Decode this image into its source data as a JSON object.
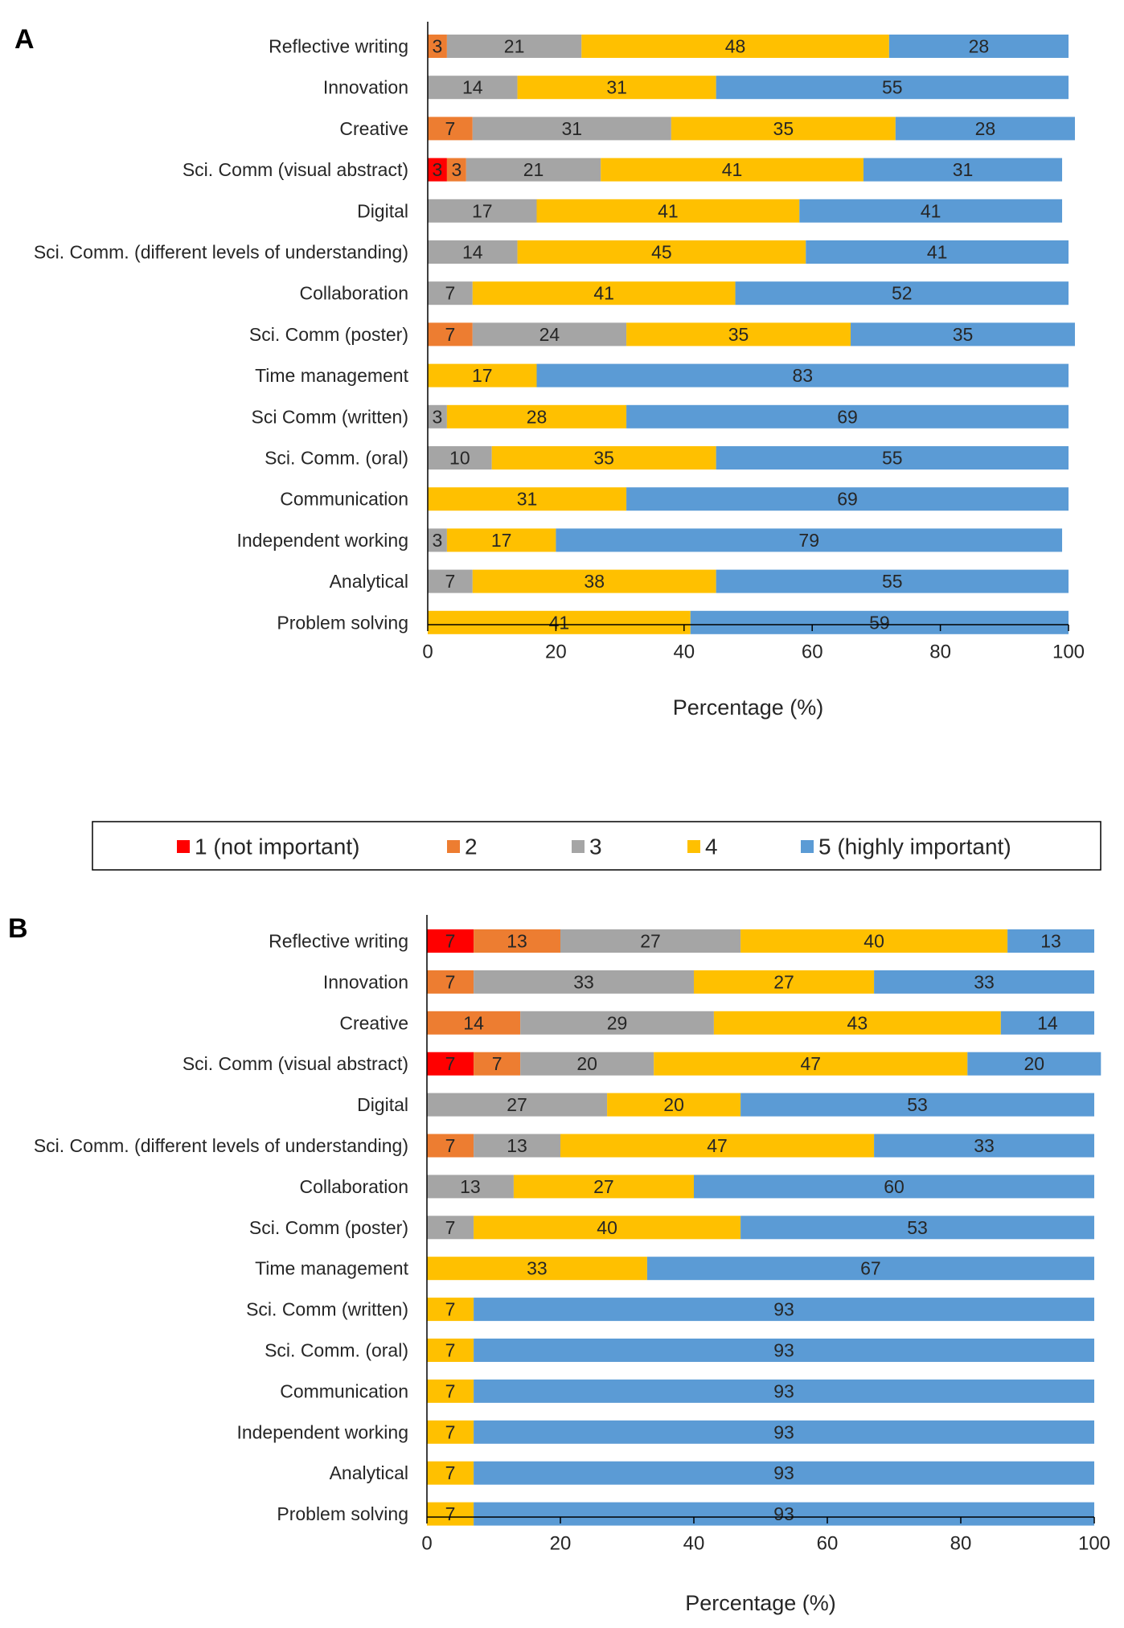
{
  "legend": {
    "items": [
      {
        "label": "1 (not important)",
        "color": "#ff0000"
      },
      {
        "label": "2",
        "color": "#ed7d31"
      },
      {
        "label": "3",
        "color": "#a5a5a5"
      },
      {
        "label": "4",
        "color": "#ffc000"
      },
      {
        "label": "5 (highly important)",
        "color": "#5b9bd5"
      }
    ]
  },
  "chart_data": [
    {
      "type": "bar",
      "orientation": "horizontal",
      "stacked": true,
      "panel_label": "A",
      "xlabel": "Percentage (%)",
      "xlim": [
        0,
        100
      ],
      "xticks": [
        0,
        20,
        40,
        60,
        80,
        100
      ],
      "categories": [
        "Reflective writing",
        "Innovation",
        "Creative",
        "Sci. Comm (visual abstract)",
        "Digital",
        "Sci. Comm. (different levels of understanding)",
        "Collaboration",
        "Sci. Comm (poster)",
        "Time management",
        "Sci Comm (written)",
        "Sci. Comm. (oral)",
        "Communication",
        "Independent working",
        "Analytical",
        "Problem solving"
      ],
      "series": [
        {
          "name": "1 (not important)",
          "values": [
            0,
            0,
            0,
            3,
            0,
            0,
            0,
            0,
            0,
            0,
            0,
            0,
            0,
            0,
            0
          ]
        },
        {
          "name": "2",
          "values": [
            3,
            0,
            7,
            3,
            0,
            0,
            0,
            7,
            0,
            0,
            0,
            0,
            0,
            0,
            0
          ]
        },
        {
          "name": "3",
          "values": [
            21,
            14,
            31,
            21,
            17,
            14,
            7,
            24,
            0,
            3,
            10,
            0,
            3,
            7,
            0
          ]
        },
        {
          "name": "4",
          "values": [
            48,
            31,
            35,
            41,
            41,
            45,
            41,
            35,
            17,
            28,
            35,
            31,
            17,
            38,
            41
          ]
        },
        {
          "name": "5 (highly important)",
          "values": [
            28,
            55,
            28,
            31,
            41,
            41,
            52,
            35,
            83,
            69,
            55,
            69,
            79,
            55,
            59
          ]
        }
      ]
    },
    {
      "type": "bar",
      "orientation": "horizontal",
      "stacked": true,
      "panel_label": "B",
      "xlabel": "Percentage  (%)",
      "xlim": [
        0,
        100
      ],
      "xticks": [
        0,
        20,
        40,
        60,
        80,
        100
      ],
      "categories": [
        "Reflective writing",
        "Innovation",
        "Creative",
        "Sci. Comm (visual abstract)",
        "Digital",
        "Sci. Comm. (different levels of understanding)",
        "Collaboration",
        "Sci. Comm (poster)",
        "Time management",
        "Sci. Comm (written)",
        "Sci. Comm. (oral)",
        "Communication",
        "Independent working",
        "Analytical",
        "Problem solving"
      ],
      "series": [
        {
          "name": "1 (not important)",
          "values": [
            7,
            0,
            0,
            7,
            0,
            0,
            0,
            0,
            0,
            0,
            0,
            0,
            0,
            0,
            0
          ]
        },
        {
          "name": "2",
          "values": [
            13,
            7,
            14,
            7,
            0,
            7,
            0,
            0,
            0,
            0,
            0,
            0,
            0,
            0,
            0
          ]
        },
        {
          "name": "3",
          "values": [
            27,
            33,
            29,
            20,
            27,
            13,
            13,
            7,
            0,
            0,
            0,
            0,
            0,
            0,
            0
          ]
        },
        {
          "name": "4",
          "values": [
            40,
            27,
            43,
            47,
            20,
            47,
            27,
            40,
            33,
            7,
            7,
            7,
            7,
            7,
            7
          ]
        },
        {
          "name": "5 (highly important)",
          "values": [
            13,
            33,
            14,
            20,
            53,
            33,
            60,
            53,
            67,
            93,
            93,
            93,
            93,
            93,
            93
          ]
        }
      ]
    }
  ]
}
